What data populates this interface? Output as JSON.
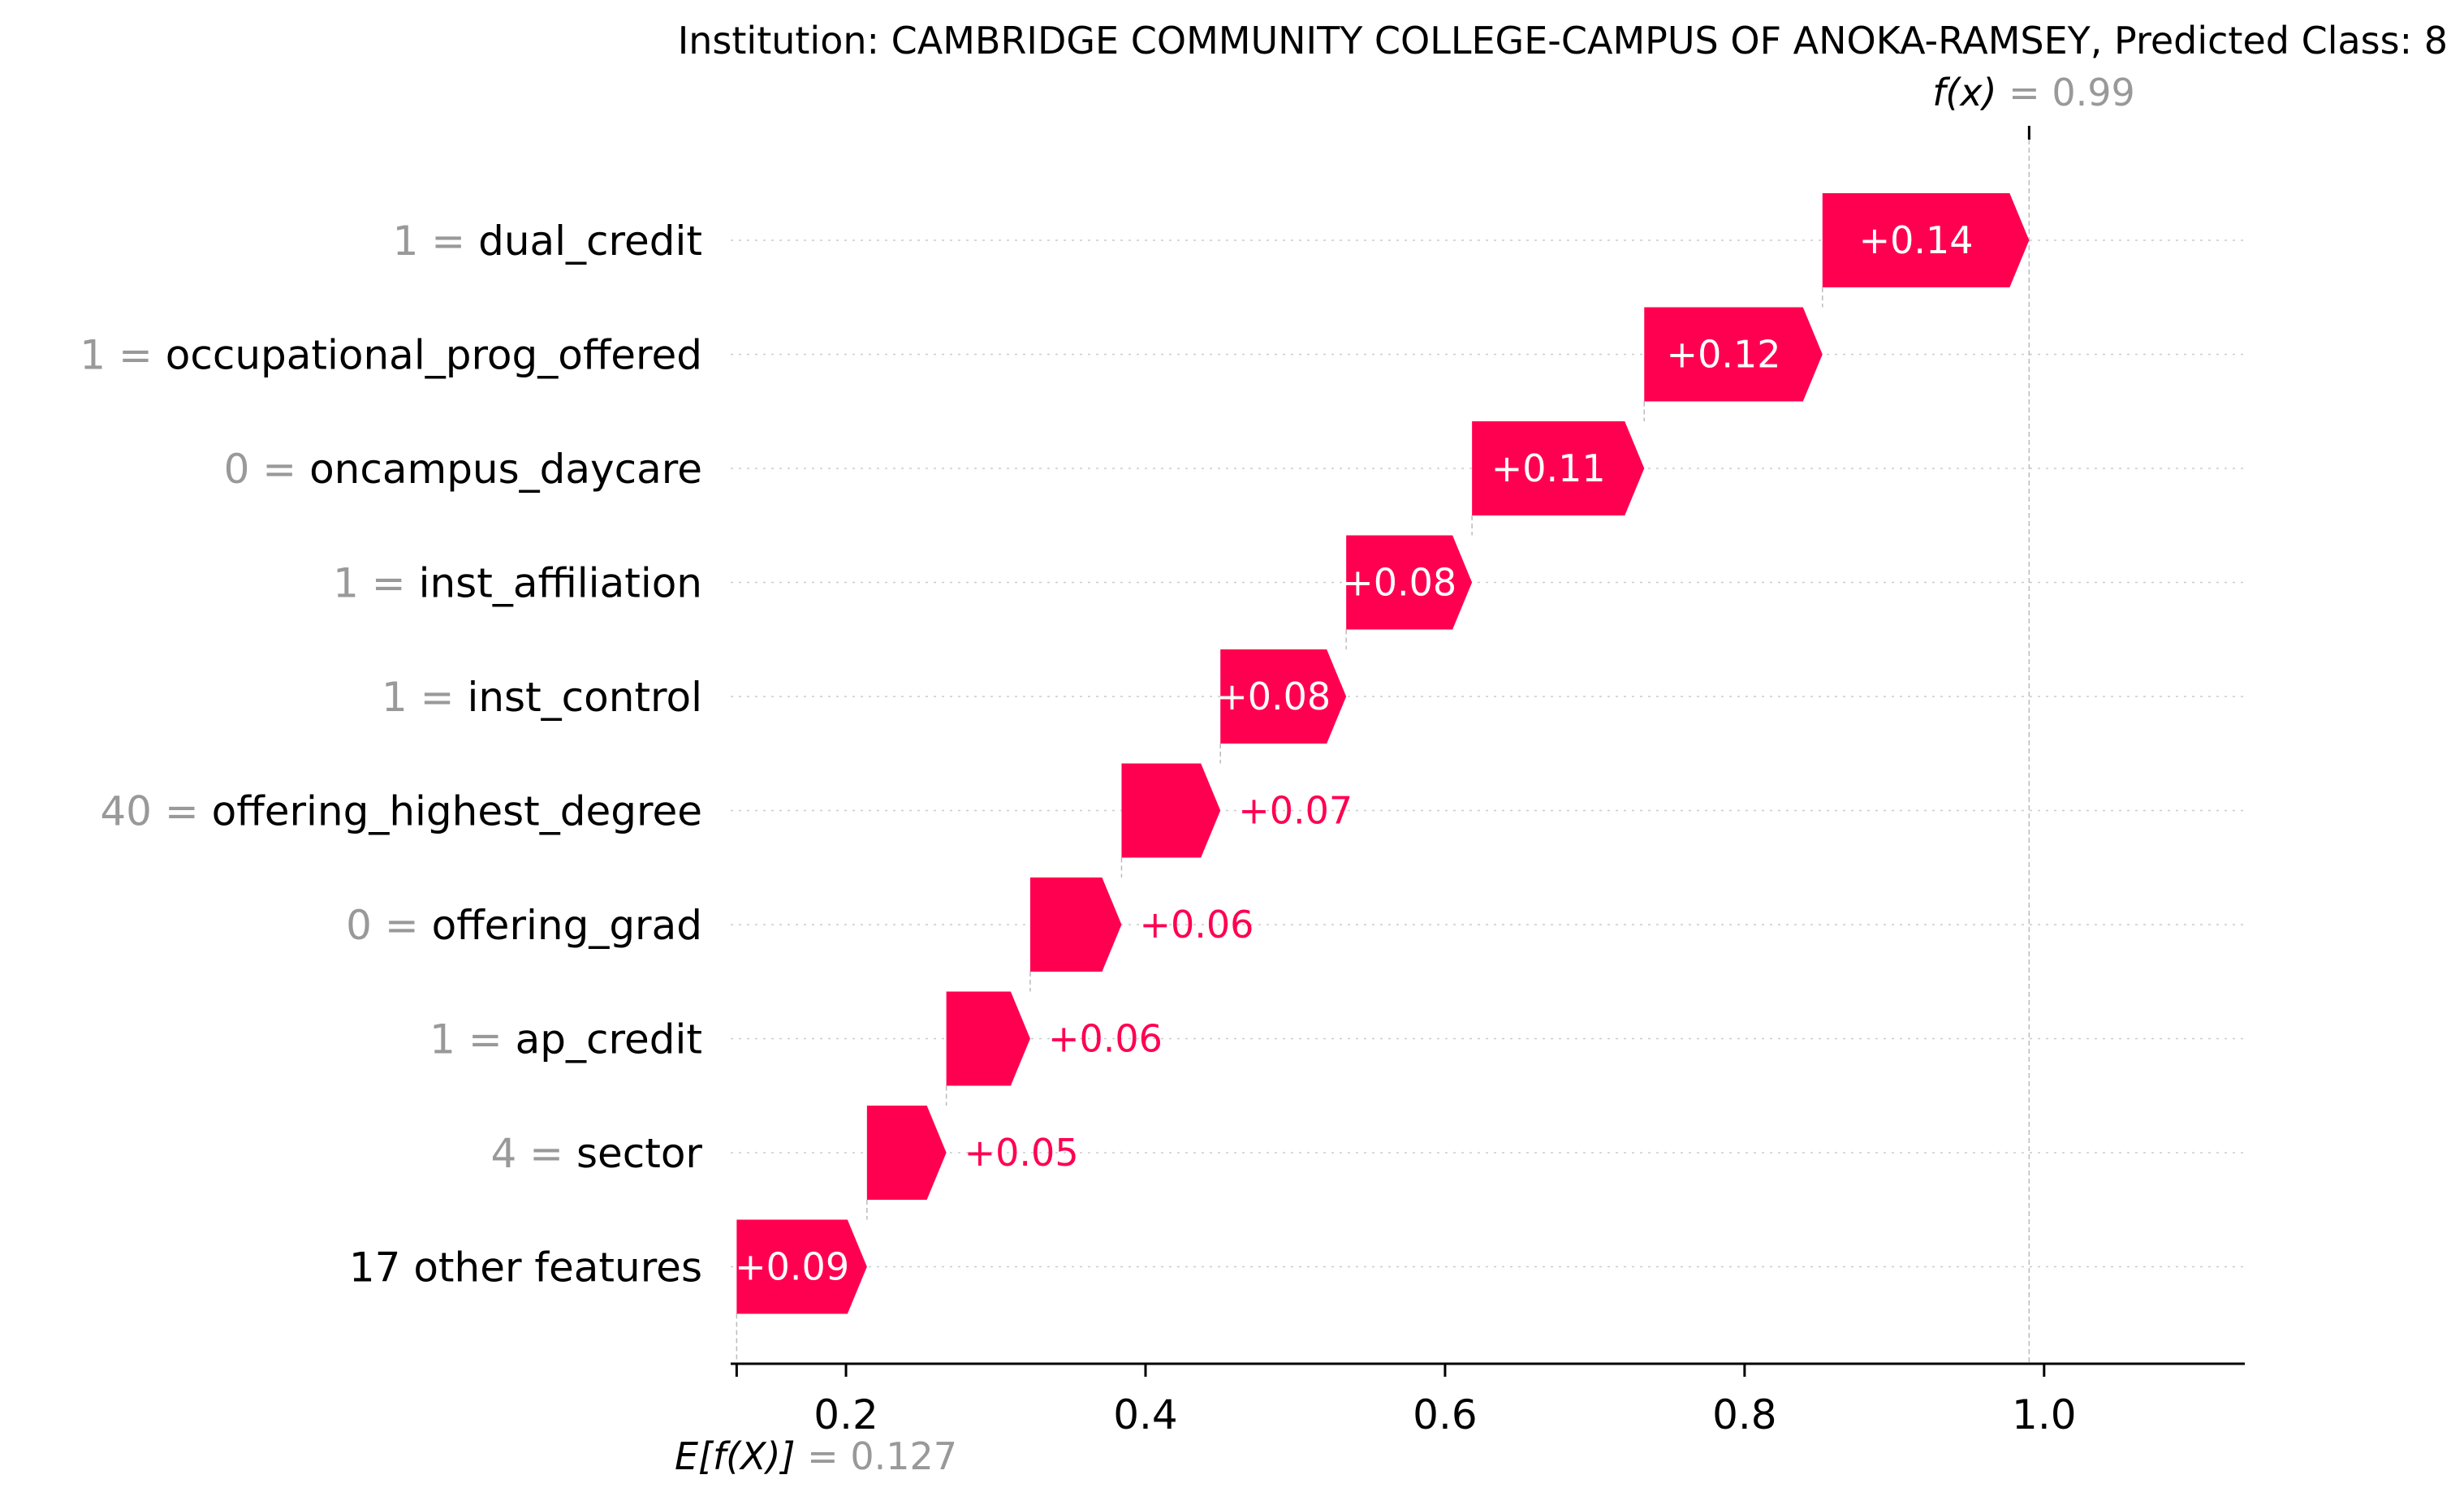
{
  "chart_data": {
    "type": "waterfall",
    "title": "Institution: CAMBRIDGE COMMUNITY COLLEGE-CAMPUS OF ANOKA-RAMSEY, Predicted Class: 8",
    "fx_label": "f(x)",
    "fx_eq": " = 0.99",
    "fx_value": 0.99,
    "base_label": "E[f(X)]",
    "base_eq": " = 0.127",
    "base_value": 0.127,
    "xlim": [
      0.123,
      1.134
    ],
    "xticks": [
      0.2,
      0.4,
      0.6,
      0.8,
      1.0
    ],
    "xtick_labels": [
      "0.2",
      "0.4",
      "0.6",
      "0.8",
      "1.0"
    ],
    "positive_color": "#ff0051",
    "features": [
      {
        "value": "1 =",
        "name": "dual_credit",
        "contribution": 0.14,
        "label": "+0.14"
      },
      {
        "value": "1 =",
        "name": "occupational_prog_offered",
        "contribution": 0.12,
        "label": "+0.12"
      },
      {
        "value": "0 =",
        "name": "oncampus_daycare",
        "contribution": 0.11,
        "label": "+0.11"
      },
      {
        "value": "1 =",
        "name": "inst_affiliation",
        "contribution": 0.08,
        "label": "+0.08"
      },
      {
        "value": "1 =",
        "name": "inst_control",
        "contribution": 0.08,
        "label": "+0.08"
      },
      {
        "value": "40 =",
        "name": "offering_highest_degree",
        "contribution": 0.07,
        "label": "+0.07"
      },
      {
        "value": "0 =",
        "name": "offering_grad",
        "contribution": 0.06,
        "label": "+0.06"
      },
      {
        "value": "1 =",
        "name": "ap_credit",
        "contribution": 0.06,
        "label": "+0.06"
      },
      {
        "value": "4 =",
        "name": "sector",
        "contribution": 0.05,
        "label": "+0.05"
      },
      {
        "value": "",
        "name": "17 other features",
        "contribution": 0.09,
        "label": "+0.09"
      }
    ],
    "bar_ends": [
      0.99,
      0.852,
      0.733,
      0.618,
      0.534,
      0.45,
      0.384,
      0.323,
      0.267,
      0.214
    ],
    "bar_starts": [
      0.852,
      0.733,
      0.618,
      0.534,
      0.45,
      0.384,
      0.323,
      0.267,
      0.214,
      0.127
    ]
  }
}
